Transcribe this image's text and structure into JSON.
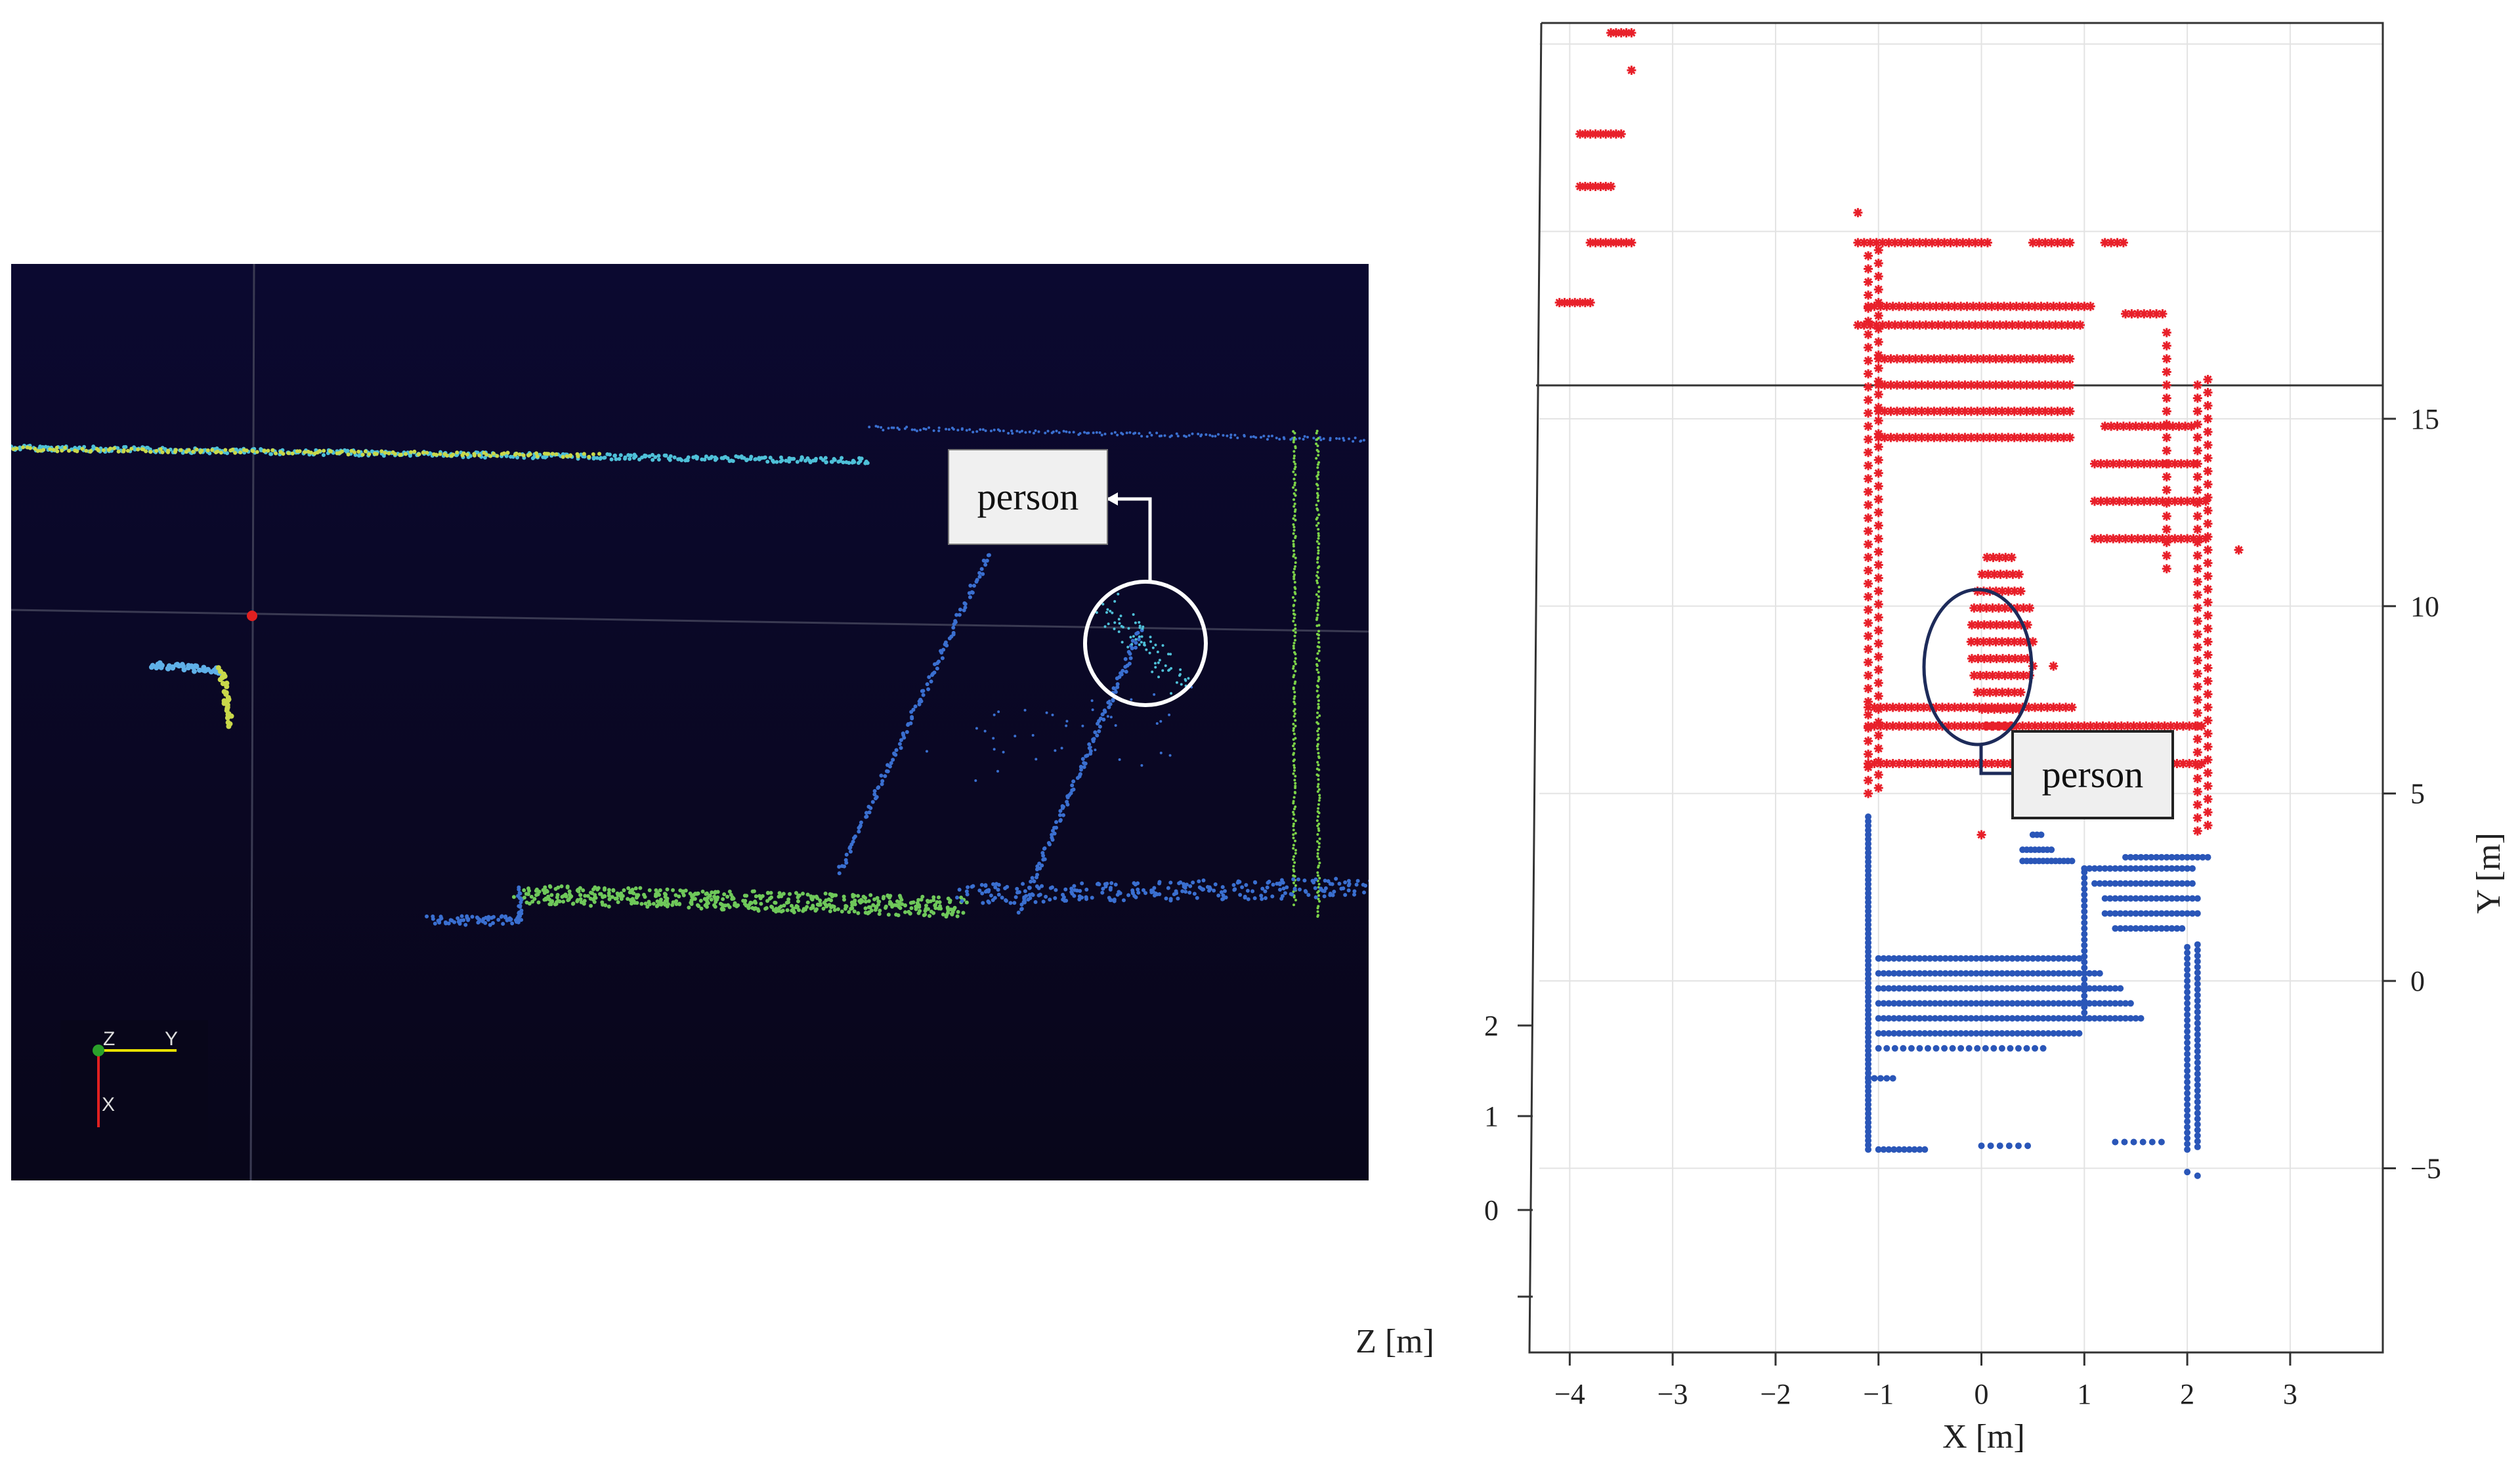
{
  "left_panel": {
    "callout": "person",
    "axis_triad": {
      "z": "Z",
      "y": "Y",
      "x": "X"
    },
    "colors": {
      "background": "#0a0726",
      "ground": "#3a6fd0",
      "highlight": "#7bd148",
      "marker": "#e02020"
    }
  },
  "right_panel": {
    "callout": "person",
    "xlabel": "X [m]",
    "ylabel": "Y [m]",
    "zlabel": "Z [m]"
  },
  "chart_data": {
    "type": "scatter",
    "xlabel": "X [m]",
    "ylabel": "Y [m]",
    "zlabel": "Z [m]",
    "xlim": [
      -4.2,
      3.9
    ],
    "ylim": [
      -5.5,
      26
    ],
    "x_ticks": [
      "−4",
      "−3",
      "−2",
      "−1",
      "0",
      "1",
      "2",
      "3"
    ],
    "y_ticks": [
      "−5",
      "0",
      "5",
      "10",
      "15"
    ],
    "z_ticks": [
      "0",
      "1",
      "2"
    ],
    "series": [
      {
        "color": "#e8202a",
        "marker": "star"
      },
      {
        "color": "#2a56b8",
        "marker": "dot"
      }
    ],
    "annotations": [
      {
        "text": "person",
        "x": 0.2,
        "y": 9.5
      }
    ]
  }
}
